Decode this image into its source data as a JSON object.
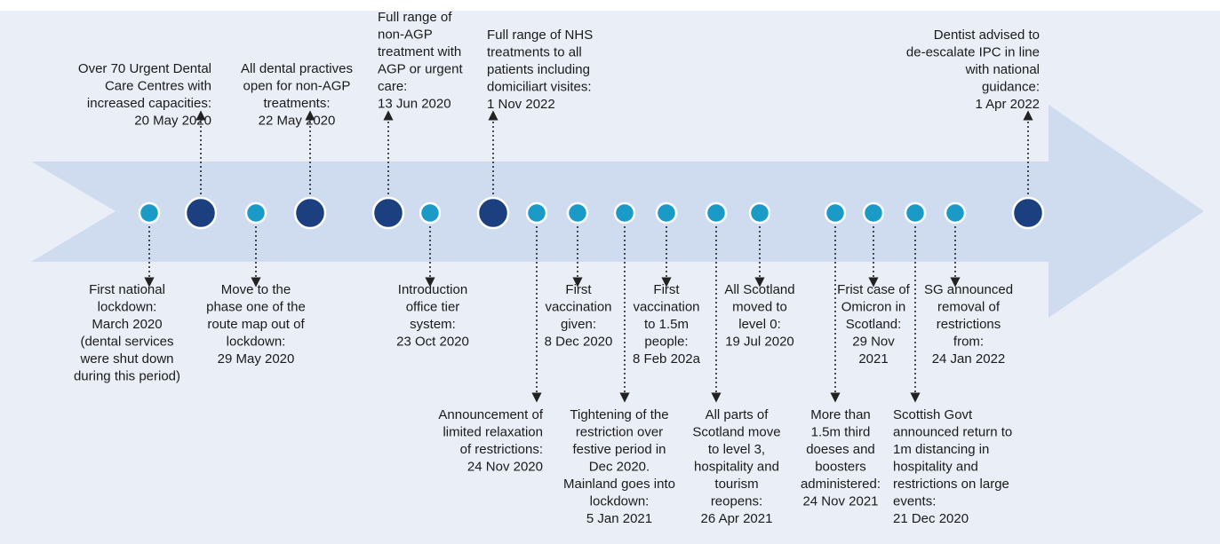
{
  "events": [
    {
      "lines": [
        "First national",
        "lockdown:",
        "March 2020",
        "(dental services",
        "were shut down",
        "during this period)"
      ]
    },
    {
      "lines": [
        "Over 70 Urgent Dental",
        "Care Centres with",
        "increased capacities:",
        "20 May 2020"
      ]
    },
    {
      "lines": [
        "Move to the",
        "phase one of the",
        "route map out of",
        "lockdown:",
        "29 May 2020"
      ]
    },
    {
      "lines": [
        "All dental practives",
        "open for non-AGP",
        "treatments:",
        "22 May 2020"
      ]
    },
    {
      "lines": [
        "Full range of",
        "non-AGP",
        "treatment with",
        "AGP or urgent",
        "care:",
        "13 Jun 2020"
      ]
    },
    {
      "lines": [
        "Introduction",
        "office tier",
        "system:",
        "23 Oct 2020"
      ]
    },
    {
      "lines": [
        "Full range of NHS",
        "treatments to all",
        "patients including",
        "domiciliart visites:",
        "1 Nov 2022"
      ]
    },
    {
      "lines": [
        "Announcement of",
        "limited relaxation",
        "of restrictions:",
        "24 Nov 2020"
      ]
    },
    {
      "lines": [
        "First",
        "vaccination",
        "given:",
        "8 Dec 2020"
      ]
    },
    {
      "lines": [
        "Tightening of the",
        "restriction over",
        "festive period in",
        "Dec 2020.",
        "Mainland goes into",
        "lockdown:",
        "5 Jan 2021"
      ]
    },
    {
      "lines": [
        "First",
        "vaccination",
        "to 1.5m",
        "people:",
        "8 Feb 202a"
      ]
    },
    {
      "lines": [
        "All parts of",
        "Scotland move",
        "to level 3,",
        "hospitality and",
        "tourism",
        "reopens:",
        "26 Apr 2021"
      ]
    },
    {
      "lines": [
        "All Scotland",
        "moved to",
        "level 0:",
        "19 Jul 2020"
      ]
    },
    {
      "lines": [
        "More than",
        "1.5m third",
        "doeses and",
        "boosters",
        "administered:",
        "24 Nov 2021"
      ]
    },
    {
      "lines": [
        "Frist case of",
        "Omicron in",
        "Scotland:",
        "29 Nov",
        "2021"
      ]
    },
    {
      "lines": [
        "Scottish Govt",
        "announced return to",
        "1m distancing in",
        "hospitality and",
        "restrictions on large",
        "events:",
        "21 Dec 2020"
      ]
    },
    {
      "lines": [
        "SG announced",
        "removal of",
        "restrictions",
        "from:",
        "24 Jan 2022"
      ]
    },
    {
      "lines": [
        "Dentist advised to",
        "de-escalate IPC in line",
        "with national",
        "guidance:",
        "1 Apr 2022"
      ]
    }
  ]
}
